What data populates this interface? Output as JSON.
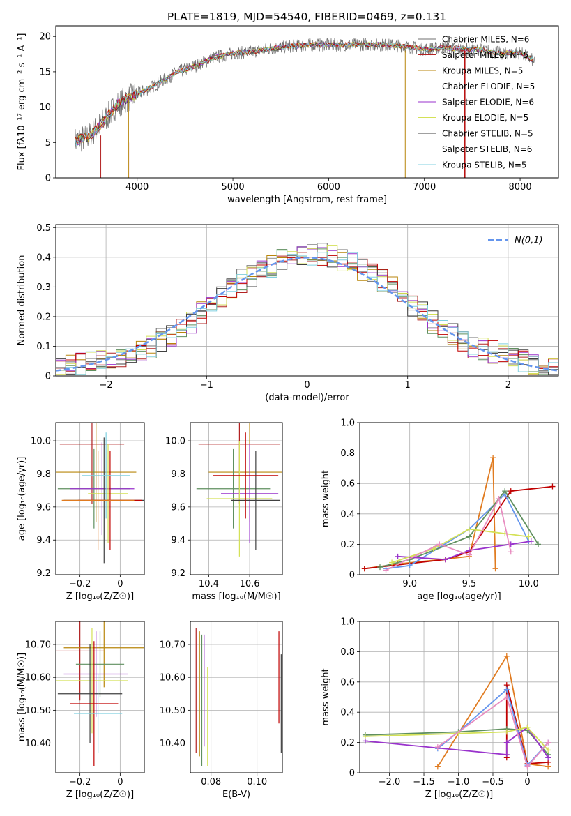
{
  "title": "PLATE=1819, MJD=54540, FIBERID=0469, z=0.131",
  "colors": {
    "grid": "#b0b0b0",
    "series": [
      "#6f6f6f",
      "#b22222",
      "#b8860b",
      "#5f8f5f",
      "#9932cc",
      "#d4e157",
      "#404040",
      "#c00000",
      "#80d0e0",
      "#e07b20",
      "#e88cc0",
      "#6495ed"
    ]
  },
  "chart_data": [
    {
      "id": "spectrum",
      "type": "line",
      "xlabel": "wavelength [Angstrom, rest frame]",
      "ylabel": "Flux [fλ10⁻¹⁷ erg cm⁻² s⁻¹ A⁻¹]",
      "xlim": [
        3150,
        8400
      ],
      "ylim": [
        0,
        21.5
      ],
      "xticks": [
        4000,
        5000,
        6000,
        7000,
        8000
      ],
      "yticks": [
        0,
        5,
        10,
        15,
        20
      ],
      "grid": false,
      "legend_position": "top-right",
      "legend": [
        "Chabrier MILES, N_SSP=6",
        "Salpeter MILES, N_SSP=5",
        "Kroupa MILES, N_SSP=5",
        "Chabrier ELODIE, N_SSP=5",
        "Salpeter ELODIE, N_SSP=6",
        "Kroupa ELODIE, N_SSP=5",
        "Chabrier STELIB, N_SSP=5",
        "Salpeter STELIB, N_SSP=6",
        "Kroupa STELIB, N_SSP=5"
      ],
      "continuum": {
        "x": [
          3350,
          3500,
          3650,
          3800,
          3950,
          4100,
          4250,
          4400,
          4600,
          4800,
          5000,
          5200,
          5400,
          5600,
          5800,
          6000,
          6200,
          6400,
          6600,
          6800,
          7000,
          7200,
          7400,
          7600,
          7800,
          8000,
          8150
        ],
        "y": [
          5.2,
          5.9,
          8,
          10.5,
          11.5,
          12.5,
          13.6,
          14.8,
          15.8,
          17,
          17.6,
          17.8,
          18.3,
          18.6,
          18.8,
          18.8,
          18.8,
          18.9,
          18.8,
          18.6,
          18.2,
          18.4,
          18.2,
          18.1,
          17.6,
          17.7,
          16.5
        ]
      }
    },
    {
      "id": "residuals",
      "type": "histogram",
      "xlabel": "(data-model)/error",
      "ylabel": "Normed distribution",
      "xlim": [
        -2.5,
        2.5
      ],
      "ylim": [
        0,
        0.51
      ],
      "xticks": [
        -2,
        -1,
        0,
        1,
        2
      ],
      "yticks": [
        0.0,
        0.1,
        0.2,
        0.3,
        0.4,
        0.5
      ],
      "grid": true,
      "legend": [
        "N(0,1)"
      ],
      "legend_position": "top-right",
      "gaussian": {
        "mean": 0,
        "sigma": 1
      },
      "bin_width": 0.1,
      "envelope": [
        0.02,
        0.03,
        0.04,
        0.05,
        0.05,
        0.06,
        0.07,
        0.08,
        0.09,
        0.1,
        0.12,
        0.14,
        0.16,
        0.18,
        0.21,
        0.24,
        0.27,
        0.3,
        0.32,
        0.34,
        0.36,
        0.37,
        0.39,
        0.4,
        0.4,
        0.41,
        0.41,
        0.4,
        0.39,
        0.38,
        0.36,
        0.34,
        0.32,
        0.3,
        0.27,
        0.24,
        0.21,
        0.18,
        0.16,
        0.14,
        0.12,
        0.1,
        0.09,
        0.08,
        0.07,
        0.06,
        0.05,
        0.04,
        0.03,
        0.02
      ]
    },
    {
      "id": "age-vs-Z",
      "type": "scatter",
      "xlabel": "Z [log₁₀(Z/Z☉)]",
      "ylabel": "age  [log₁₀(age/yr)]",
      "xlim": [
        -0.32,
        0.12
      ],
      "ylim": [
        9.19,
        10.11
      ],
      "xticks": [
        -0.2,
        0.0
      ],
      "yticks": [
        9.2,
        9.4,
        9.6,
        9.8,
        10.0
      ],
      "grid": true,
      "points": [
        {
          "x": -0.14,
          "y": 9.98,
          "xerr": 0.16,
          "yerr": 0.36
        },
        {
          "x": -0.12,
          "y": 9.81,
          "xerr": 0.2,
          "yerr": 0.3
        },
        {
          "x": -0.13,
          "y": 9.71,
          "xerr": 0.18,
          "yerr": 0.24
        },
        {
          "x": -0.09,
          "y": 9.71,
          "xerr": 0.16,
          "yerr": 0.28
        },
        {
          "x": -0.06,
          "y": 9.68,
          "xerr": 0.1,
          "yerr": 0.3
        },
        {
          "x": -0.08,
          "y": 9.64,
          "xerr": 0.2,
          "yerr": 0.38
        },
        {
          "x": -0.05,
          "y": 9.64,
          "xerr": 0.16,
          "yerr": 0.3
        },
        {
          "x": -0.07,
          "y": 9.79,
          "xerr": 0.12,
          "yerr": 0.26
        },
        {
          "x": -0.11,
          "y": 9.64,
          "xerr": 0.18,
          "yerr": 0.3
        }
      ]
    },
    {
      "id": "age-vs-mass",
      "type": "scatter",
      "xlabel": "mass [log₁₀(M/M☉)]",
      "ylabel": "",
      "xlim": [
        10.31,
        10.76
      ],
      "ylim": [
        9.19,
        10.11
      ],
      "xticks": [
        10.4,
        10.6
      ],
      "yticks": [
        9.2,
        9.4,
        9.6,
        9.8,
        10.0
      ],
      "grid": true,
      "points": [
        {
          "x": 10.55,
          "y": 9.98,
          "xerr": 0.2,
          "yerr": 0.36
        },
        {
          "x": 10.6,
          "y": 9.81,
          "xerr": 0.2,
          "yerr": 0.3
        },
        {
          "x": 10.52,
          "y": 9.71,
          "xerr": 0.18,
          "yerr": 0.24
        },
        {
          "x": 10.6,
          "y": 9.68,
          "xerr": 0.14,
          "yerr": 0.3
        },
        {
          "x": 10.55,
          "y": 9.65,
          "xerr": 0.16,
          "yerr": 0.35
        },
        {
          "x": 10.63,
          "y": 9.64,
          "xerr": 0.12,
          "yerr": 0.3
        },
        {
          "x": 10.58,
          "y": 9.79,
          "xerr": 0.16,
          "yerr": 0.26
        }
      ]
    },
    {
      "id": "weight-vs-age",
      "type": "line",
      "xlabel": "age  [log₁₀(age/yr)]",
      "ylabel": "mass weight",
      "xlim": [
        8.58,
        10.25
      ],
      "ylim": [
        0,
        1.0
      ],
      "xticks": [
        9.0,
        9.5,
        10.0
      ],
      "yticks": [
        0.0,
        0.2,
        0.4,
        0.6,
        0.8,
        1.0
      ],
      "grid": true,
      "series": [
        {
          "x": [
            8.62,
            8.9,
            9.5,
            9.7,
            9.72
          ],
          "y": [
            0.04,
            0.07,
            0.12,
            0.77,
            0.04
          ]
        },
        {
          "x": [
            8.62,
            9.3,
            9.5,
            9.85,
            10.2
          ],
          "y": [
            0.04,
            0.1,
            0.15,
            0.55,
            0.58
          ]
        },
        {
          "x": [
            8.8,
            9.0,
            9.5,
            9.8,
            10.0
          ],
          "y": [
            0.04,
            0.06,
            0.3,
            0.53,
            0.22
          ]
        },
        {
          "x": [
            8.75,
            9.0,
            9.5,
            9.8,
            10.08
          ],
          "y": [
            0.05,
            0.1,
            0.25,
            0.55,
            0.2
          ]
        },
        {
          "x": [
            8.9,
            9.3,
            9.5,
            9.85,
            10.02
          ],
          "y": [
            0.12,
            0.1,
            0.16,
            0.2,
            0.22
          ]
        },
        {
          "x": [
            8.85,
            9.2,
            9.5,
            9.8,
            10.0
          ],
          "y": [
            0.08,
            0.17,
            0.3,
            0.27,
            0.25
          ]
        },
        {
          "x": [
            8.8,
            9.25,
            9.5,
            9.75,
            9.85
          ],
          "y": [
            0.03,
            0.2,
            0.13,
            0.5,
            0.15
          ]
        }
      ]
    },
    {
      "id": "mass-vs-Z",
      "type": "scatter",
      "xlabel": "Z [log₁₀(Z/Z☉)]",
      "ylabel": "mass [log₁₀(M/M☉)]",
      "xlim": [
        -0.32,
        0.12
      ],
      "ylim": [
        10.31,
        10.77
      ],
      "xticks": [
        -0.2,
        0.0
      ],
      "yticks": [
        10.4,
        10.5,
        10.6,
        10.7
      ],
      "grid": true,
      "points": [
        {
          "x": -0.2,
          "y": 10.68,
          "xerr": 0.12,
          "yerr": 0.15
        },
        {
          "x": -0.08,
          "y": 10.69,
          "xerr": 0.2,
          "yerr": 0.12
        },
        {
          "x": -0.1,
          "y": 10.64,
          "xerr": 0.12,
          "yerr": 0.1
        },
        {
          "x": -0.12,
          "y": 10.61,
          "xerr": 0.16,
          "yerr": 0.13
        },
        {
          "x": -0.14,
          "y": 10.59,
          "xerr": 0.18,
          "yerr": 0.16
        },
        {
          "x": -0.15,
          "y": 10.55,
          "xerr": 0.16,
          "yerr": 0.15
        },
        {
          "x": -0.13,
          "y": 10.52,
          "xerr": 0.12,
          "yerr": 0.19
        },
        {
          "x": -0.11,
          "y": 10.49,
          "xerr": 0.12,
          "yerr": 0.12
        }
      ]
    },
    {
      "id": "mass-vs-EBV",
      "type": "scatter",
      "xlabel": "E(B-V)",
      "ylabel": "",
      "xlim": [
        0.071,
        0.111
      ],
      "ylim": [
        10.31,
        10.77
      ],
      "xticks": [
        0.08,
        0.1
      ],
      "yticks": [
        10.4,
        10.5,
        10.6,
        10.7
      ],
      "grid": true,
      "points": [
        {
          "x": 0.0735,
          "y": 10.56,
          "xerr": 0,
          "yerr": 0.19
        },
        {
          "x": 0.075,
          "y": 10.55,
          "xerr": 0,
          "yerr": 0.19
        },
        {
          "x": 0.076,
          "y": 10.53,
          "xerr": 0,
          "yerr": 0.2
        },
        {
          "x": 0.077,
          "y": 10.56,
          "xerr": 0,
          "yerr": 0.17
        },
        {
          "x": 0.0785,
          "y": 10.48,
          "xerr": 0,
          "yerr": 0.15
        },
        {
          "x": 0.1105,
          "y": 10.52,
          "xerr": 0,
          "yerr": 0.15
        },
        {
          "x": 0.1095,
          "y": 10.6,
          "xerr": 0,
          "yerr": 0.14
        }
      ]
    },
    {
      "id": "weight-vs-Z",
      "type": "line",
      "xlabel": "Z [log₁₀(Z/Z☉)]",
      "ylabel": "mass weight",
      "xlim": [
        -2.43,
        0.45
      ],
      "ylim": [
        0,
        1.0
      ],
      "xticks": [
        -2.0,
        -1.5,
        -1.0,
        -0.5,
        0.0
      ],
      "yticks": [
        0.0,
        0.2,
        0.4,
        0.6,
        0.8,
        1.0
      ],
      "grid": true,
      "series": [
        {
          "x": [
            -1.3,
            -0.3,
            0.0,
            0.3
          ],
          "y": [
            0.04,
            0.77,
            0.06,
            0.04
          ]
        },
        {
          "x": [
            -0.3,
            -0.3,
            0.0,
            0.3
          ],
          "y": [
            0.1,
            0.58,
            0.06,
            0.07
          ]
        },
        {
          "x": [
            -1.3,
            -1.0,
            -0.3,
            0.0,
            0.3
          ],
          "y": [
            0.16,
            0.27,
            0.55,
            0.05,
            0.2
          ]
        },
        {
          "x": [
            -2.35,
            -1.0,
            -0.3,
            0.0,
            0.3
          ],
          "y": [
            0.25,
            0.27,
            0.29,
            0.28,
            0.12
          ]
        },
        {
          "x": [
            -2.35,
            -0.3,
            -0.3,
            0.0,
            0.3
          ],
          "y": [
            0.21,
            0.12,
            0.2,
            0.3,
            0.1
          ]
        },
        {
          "x": [
            -2.35,
            -1.0,
            -0.3,
            0.0,
            0.3
          ],
          "y": [
            0.24,
            0.26,
            0.27,
            0.3,
            0.15
          ]
        },
        {
          "x": [
            -1.3,
            -0.3,
            0.0,
            0.3
          ],
          "y": [
            0.17,
            0.5,
            0.04,
            0.2
          ]
        }
      ]
    }
  ]
}
